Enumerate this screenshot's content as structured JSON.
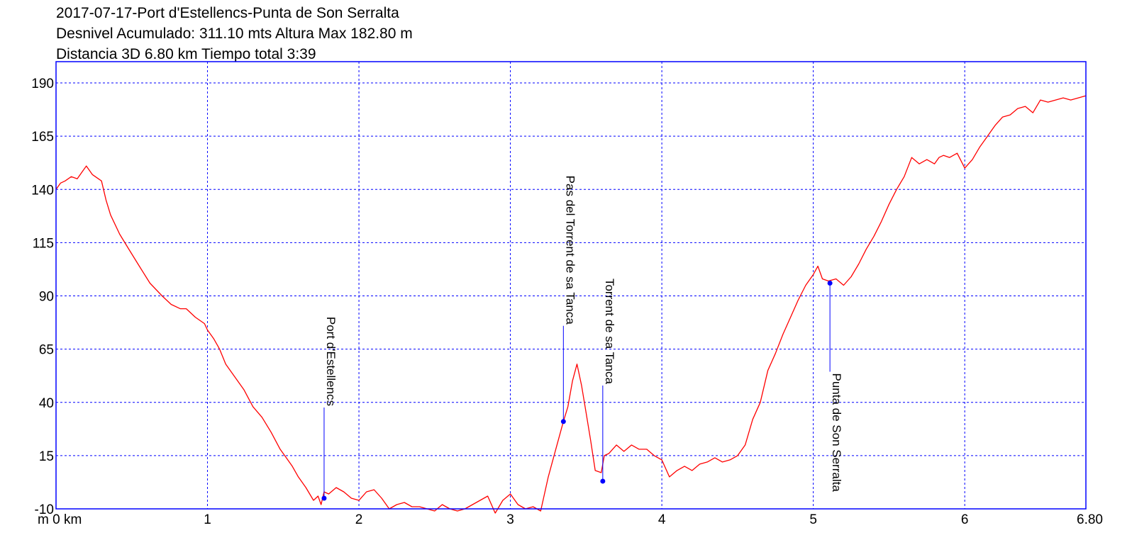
{
  "header": {
    "line1": "2017-07-17-Port d'Estellencs-Punta de Son Serralta",
    "line2": "Desnivel Acumulado: 311.10 mts  Altura Max 182.80 m",
    "line3": "Distancia 3D 6.80 km  Tiempo total 3:39"
  },
  "colors": {
    "profile": "#ff0000",
    "frame": "#0000ff",
    "grid": "#0000ff",
    "waypoint": "#0000ff",
    "text": "#000000"
  },
  "chart_data": {
    "type": "line",
    "title": "2017-07-17-Port d'Estellencs-Punta de Son Serralta",
    "subtitle": "Desnivel Acumulado: 311.10 mts  Altura Max 182.80 m  |  Distancia 3D 6.80 km  Tiempo total 3:39",
    "xlabel": "",
    "ylabel": "",
    "x_unit_prefix": "m 0 km",
    "xlim": [
      0,
      6.8
    ],
    "ylim": [
      -10,
      200
    ],
    "grid": true,
    "x_ticks": [
      0,
      1,
      2,
      3,
      4,
      5,
      6,
      6.8
    ],
    "x_tick_labels": [
      "m 0 km",
      "1",
      "2",
      "3",
      "4",
      "5",
      "6",
      "6.80"
    ],
    "y_ticks": [
      -10,
      15,
      40,
      65,
      90,
      115,
      140,
      165,
      190
    ],
    "y_tick_labels": [
      "-10",
      "15",
      "40",
      "65",
      "90",
      "115",
      "140",
      "165",
      "190"
    ],
    "series": [
      {
        "x": [
          0.0,
          0.03,
          0.06,
          0.1,
          0.14,
          0.18,
          0.2,
          0.24,
          0.28,
          0.3,
          0.33,
          0.36,
          0.42,
          0.48,
          0.55,
          0.62,
          0.7,
          0.76,
          0.82,
          0.86,
          0.92,
          0.98,
          1.0,
          1.04,
          1.08,
          1.12,
          1.18,
          1.24,
          1.3,
          1.36,
          1.42,
          1.48,
          1.52,
          1.56,
          1.6,
          1.65,
          1.7,
          1.73,
          1.75,
          1.77,
          1.8,
          1.85,
          1.9,
          1.95,
          2.0,
          2.05,
          2.1,
          2.15,
          2.2,
          2.25,
          2.3,
          2.35,
          2.4,
          2.45,
          2.5,
          2.55,
          2.6,
          2.65,
          2.7,
          2.75,
          2.8,
          2.85,
          2.9,
          2.95,
          3.0,
          3.05,
          3.1,
          3.15,
          3.2,
          3.25,
          3.3,
          3.35,
          3.38,
          3.41,
          3.44,
          3.47,
          3.5,
          3.53,
          3.56,
          3.6,
          3.62,
          3.65,
          3.7,
          3.75,
          3.8,
          3.85,
          3.9,
          3.95,
          4.0,
          4.05,
          4.1,
          4.15,
          4.2,
          4.25,
          4.3,
          4.35,
          4.4,
          4.45,
          4.5,
          4.55,
          4.6,
          4.65,
          4.7,
          4.75,
          4.8,
          4.85,
          4.9,
          4.95,
          5.0,
          5.03,
          5.06,
          5.1,
          5.15,
          5.2,
          5.25,
          5.3,
          5.35,
          5.4,
          5.45,
          5.5,
          5.55,
          5.6,
          5.65,
          5.7,
          5.75,
          5.8,
          5.83,
          5.86,
          5.9,
          5.95,
          6.0,
          6.05,
          6.1,
          6.15,
          6.2,
          6.25,
          6.3,
          6.35,
          6.4,
          6.45,
          6.5,
          6.55,
          6.6,
          6.65,
          6.7,
          6.75,
          6.8
        ],
        "y": [
          140,
          143,
          144,
          146,
          145,
          149,
          151,
          147,
          145,
          144,
          135,
          128,
          119,
          112,
          104,
          96,
          90,
          86,
          84,
          84,
          80,
          77,
          74,
          70,
          65,
          58,
          52,
          46,
          38,
          33,
          26,
          18,
          14,
          10,
          5,
          0,
          -6,
          -4,
          -8,
          -2,
          -3,
          0,
          -2,
          -5,
          -6,
          -2,
          -1,
          -5,
          -10,
          -8,
          -7,
          -9,
          -9,
          -10,
          -11,
          -8,
          -10,
          -11,
          -10,
          -8,
          -6,
          -4,
          -12,
          -6,
          -3,
          -8,
          -10,
          -9,
          -11,
          5,
          18,
          31,
          38,
          50,
          58,
          48,
          35,
          22,
          8,
          7,
          15,
          16,
          20,
          17,
          20,
          18,
          18,
          15,
          13,
          5,
          8,
          10,
          8,
          11,
          12,
          14,
          12,
          13,
          15,
          20,
          32,
          40,
          55,
          63,
          72,
          80,
          88,
          95,
          100,
          104,
          98,
          97,
          98,
          95,
          99,
          105,
          112,
          118,
          125,
          133,
          140,
          146,
          155,
          152,
          154,
          152,
          155,
          156,
          155,
          157,
          150,
          154,
          160,
          165,
          170,
          174,
          175,
          178,
          179,
          176,
          182,
          181,
          182,
          183,
          182,
          183,
          184
        ]
      }
    ],
    "waypoints": [
      {
        "label": "Port d'Estellencs",
        "x": 1.77,
        "y": -5
      },
      {
        "label": "Pas del Torrent de sa Tanca",
        "x": 3.35,
        "y": 31
      },
      {
        "label": "Torrent de sa Tanca",
        "x": 3.61,
        "y": 3
      },
      {
        "label": "Punta de Son Serralta",
        "x": 5.11,
        "y": 96
      }
    ]
  }
}
